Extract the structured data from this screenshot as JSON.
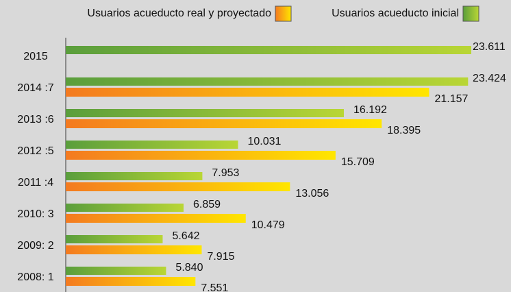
{
  "chart_data": {
    "type": "hbar",
    "categories": [
      "2015",
      "2014 :7",
      "2013 :6",
      "2012 :5",
      "2011 :4",
      "2010: 3",
      "2009: 2",
      "2008: 1"
    ],
    "series": [
      {
        "name": "Usuarios acueducto real y proyectado",
        "color": "#f47a20",
        "color_end": "#ffe600",
        "values": [
          null,
          21157,
          18395,
          15709,
          13056,
          10479,
          7915,
          7551
        ],
        "value_labels": [
          null,
          "21.157",
          "18.395",
          "15.709",
          "13.056",
          "10.479",
          "7.915",
          "7.551"
        ]
      },
      {
        "name": "Usuarios acueducto inicial",
        "color": "#5a9e3c",
        "color_end": "#b9d635",
        "values": [
          23611,
          23424,
          16192,
          10031,
          7953,
          6859,
          5642,
          5840
        ],
        "value_labels": [
          "23.611",
          "23.424",
          "16.192",
          "10.031",
          "7.953",
          "6.859",
          "5.642",
          "5.840"
        ]
      }
    ]
  }
}
